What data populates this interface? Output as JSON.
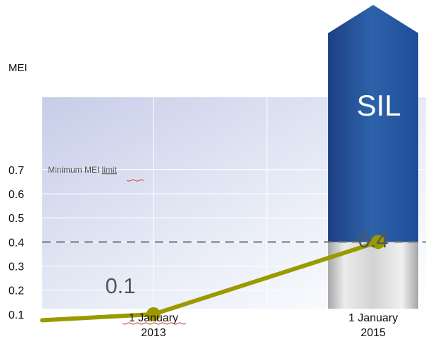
{
  "chart_data": {
    "type": "line",
    "ylabel": "MEI",
    "yticks": [
      "0.7",
      "0.6",
      "0.5",
      "0.4",
      "0.3",
      "0.2",
      "0.1"
    ],
    "ylim": [
      0,
      0.7
    ],
    "x_labels": [
      {
        "line1": "1 January",
        "line2": "2013"
      },
      {
        "line1": "1 January",
        "line2": "2015"
      }
    ],
    "series": [
      {
        "values": [
          {
            "x": "1 January 2013",
            "y": 0.1
          },
          {
            "x": "1 January 2015",
            "y": 0.4
          }
        ]
      }
    ],
    "bars": [
      {
        "x": "1 January 2013",
        "value": 0.1,
        "label": "0.1"
      },
      {
        "x": "1 January 2015",
        "value": 0.4,
        "label": "0.4"
      }
    ],
    "threshold": {
      "value": 0.4,
      "label_parts": [
        "Minimum  MEI ",
        "limit"
      ]
    },
    "callout": {
      "label": "SIL"
    },
    "grid": true,
    "colors": {
      "line": "#9a9a00",
      "marker": "#9a9a00",
      "sil": "#234f97",
      "threshold": "#777777",
      "bar": "#bcbcbc"
    }
  }
}
